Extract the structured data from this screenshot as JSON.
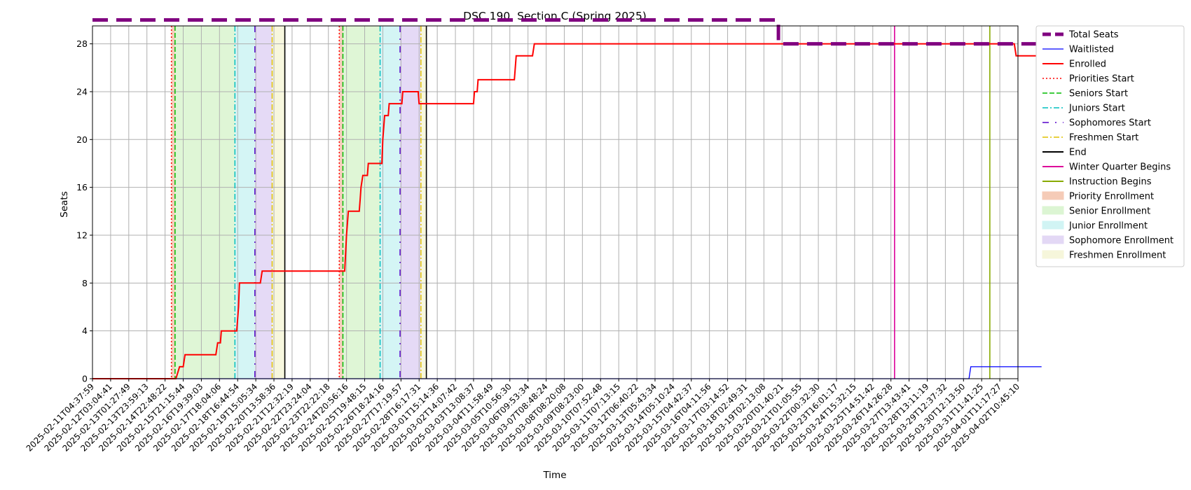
{
  "chart_data": {
    "type": "line",
    "title": "DSC 190, Section C (Spring 2025)",
    "xlabel": "Time",
    "ylabel": "Seats",
    "ylim": [
      0,
      29.5
    ],
    "yticks": [
      0,
      4,
      8,
      12,
      16,
      20,
      24,
      28
    ],
    "grid": true,
    "legend_position": "outside right",
    "x_range": [
      "2025-02-11T04:37:59",
      "2025-04-02T10:45:10"
    ],
    "xticks": [
      "2025-02-11T04:37:59",
      "2025-02-12T03:04:41",
      "2025-02-13T01:27:49",
      "2025-02-13T23:59:13",
      "2025-02-14T22:48:22",
      "2025-02-15T21:15:44",
      "2025-02-16T19:39:03",
      "2025-02-17T18:04:06",
      "2025-02-18T16:44:54",
      "2025-02-19T15:05:34",
      "2025-02-20T13:58:36",
      "2025-02-21T12:32:19",
      "2025-02-22T23:24:04",
      "2025-02-23T22:22:18",
      "2025-02-24T20:56:16",
      "2025-02-25T19:48:15",
      "2025-02-26T18:24:16",
      "2025-02-27T17:19:57",
      "2025-02-28T16:17:31",
      "2025-03-01T15:14:36",
      "2025-03-02T14:07:42",
      "2025-03-03T13:08:37",
      "2025-03-04T11:58:49",
      "2025-03-05T10:56:30",
      "2025-03-06T09:53:34",
      "2025-03-07T08:48:24",
      "2025-03-08T08:20:08",
      "2025-03-09T08:23:00",
      "2025-03-10T07:52:48",
      "2025-03-11T07:13:15",
      "2025-03-12T06:40:22",
      "2025-03-13T05:43:34",
      "2025-03-14T05:10:24",
      "2025-03-15T04:42:37",
      "2025-03-16T04:11:56",
      "2025-03-17T03:14:52",
      "2025-03-18T02:49:31",
      "2025-03-19T02:13:08",
      "2025-03-20T01:40:21",
      "2025-03-21T01:05:55",
      "2025-03-22T00:32:30",
      "2025-03-23T16:01:17",
      "2025-03-24T15:32:15",
      "2025-03-25T14:51:42",
      "2025-03-26T14:26:28",
      "2025-03-27T13:43:41",
      "2025-03-28T13:11:19",
      "2025-03-29T12:37:32",
      "2025-03-30T12:13:50",
      "2025-03-31T11:41:25",
      "2025-04-01T11:17:27",
      "2025-04-02T10:45:10"
    ],
    "series": [
      {
        "name": "Total Seats",
        "color": "#800080",
        "style": "dashed-thick",
        "points": [
          [
            0,
            30
          ],
          [
            37.8,
            30
          ],
          [
            37.8,
            28
          ],
          [
            52.3,
            28
          ]
        ]
      },
      {
        "name": "Waitlisted",
        "color": "#0000ff",
        "style": "solid-thin",
        "points": [
          [
            0,
            0
          ],
          [
            48.3,
            0
          ],
          [
            48.4,
            1
          ],
          [
            52.3,
            1
          ]
        ]
      },
      {
        "name": "Enrolled",
        "color": "#ff0000",
        "style": "solid",
        "points": [
          [
            0,
            0
          ],
          [
            4.6,
            0
          ],
          [
            4.8,
            1
          ],
          [
            5.0,
            1
          ],
          [
            5.1,
            2
          ],
          [
            6.8,
            2
          ],
          [
            6.9,
            3
          ],
          [
            7.05,
            3
          ],
          [
            7.1,
            4
          ],
          [
            7.95,
            4
          ],
          [
            8.0,
            5
          ],
          [
            8.05,
            6
          ],
          [
            8.1,
            8
          ],
          [
            9.25,
            8
          ],
          [
            9.35,
            9
          ],
          [
            13.9,
            9
          ],
          [
            14.0,
            12
          ],
          [
            14.1,
            14
          ],
          [
            14.7,
            14
          ],
          [
            14.75,
            15
          ],
          [
            14.8,
            16
          ],
          [
            14.9,
            17
          ],
          [
            15.15,
            17
          ],
          [
            15.2,
            18
          ],
          [
            15.95,
            18
          ],
          [
            16.0,
            20
          ],
          [
            16.1,
            22
          ],
          [
            16.3,
            22
          ],
          [
            16.35,
            23
          ],
          [
            17.05,
            23
          ],
          [
            17.1,
            24
          ],
          [
            17.95,
            24
          ],
          [
            18.0,
            23
          ],
          [
            21.0,
            23
          ],
          [
            21.05,
            24
          ],
          [
            21.2,
            24
          ],
          [
            21.25,
            25
          ],
          [
            23.25,
            25
          ],
          [
            23.3,
            26
          ],
          [
            23.35,
            27
          ],
          [
            24.25,
            27
          ],
          [
            24.35,
            28
          ],
          [
            50.8,
            28
          ],
          [
            50.9,
            27
          ],
          [
            52.3,
            27
          ]
        ]
      }
    ],
    "event_lines": [
      {
        "name": "Priorities Start",
        "color": "#ff0000",
        "style": "dotted",
        "x": [
          4.35,
          13.6
        ]
      },
      {
        "name": "Seniors Start",
        "color": "#00bb00",
        "style": "dashed",
        "x": [
          4.55,
          13.8
        ]
      },
      {
        "name": "Juniors Start",
        "color": "#00bfbf",
        "style": "dashdot",
        "x": [
          7.85,
          15.85
        ]
      },
      {
        "name": "Sophomores Start",
        "color": "#5500cc",
        "style": "dashdot-sparse",
        "x": [
          8.95,
          16.95
        ]
      },
      {
        "name": "Freshmen Start",
        "color": "#e0c000",
        "style": "dashdot",
        "x": [
          9.9,
          18.1
        ]
      },
      {
        "name": "End",
        "color": "#000000",
        "style": "solid",
        "x": [
          10.6,
          18.4
        ]
      },
      {
        "name": "Winter Quarter Begins",
        "color": "#dd0099",
        "style": "solid",
        "x": [
          44.2
        ]
      },
      {
        "name": "Instruction Begins",
        "color": "#88aa00",
        "style": "solid",
        "x": [
          49.45
        ]
      }
    ],
    "enrollment_periods": [
      {
        "name": "Priority Enrollment",
        "color": "#f4c6b0",
        "ranges": [
          [
            4.35,
            4.55
          ],
          [
            13.6,
            13.8
          ]
        ]
      },
      {
        "name": "Senior Enrollment",
        "color": "#d9f5cf",
        "ranges": [
          [
            4.55,
            7.85
          ],
          [
            13.8,
            15.85
          ]
        ]
      },
      {
        "name": "Junior Enrollment",
        "color": "#cdf3f3",
        "ranges": [
          [
            7.85,
            8.95
          ],
          [
            15.85,
            16.95
          ]
        ]
      },
      {
        "name": "Sophomore Enrollment",
        "color": "#e1d4f5",
        "ranges": [
          [
            8.95,
            9.9
          ],
          [
            16.95,
            18.1
          ]
        ]
      },
      {
        "name": "Freshmen Enrollment",
        "color": "#f6f6d8",
        "ranges": [
          [
            9.9,
            10.6
          ],
          [
            18.1,
            18.4
          ]
        ]
      }
    ],
    "legend": [
      {
        "label": "Total Seats",
        "kind": "line",
        "color": "#800080",
        "style": "dashed-thick"
      },
      {
        "label": "Waitlisted",
        "kind": "line",
        "color": "#0000ff",
        "style": "solid-thin"
      },
      {
        "label": "Enrolled",
        "kind": "line",
        "color": "#ff0000",
        "style": "solid"
      },
      {
        "label": "Priorities Start",
        "kind": "line",
        "color": "#ff0000",
        "style": "dotted"
      },
      {
        "label": "Seniors Start",
        "kind": "line",
        "color": "#00bb00",
        "style": "dashed"
      },
      {
        "label": "Juniors Start",
        "kind": "line",
        "color": "#00bfbf",
        "style": "dashdot"
      },
      {
        "label": "Sophomores Start",
        "kind": "line",
        "color": "#5500cc",
        "style": "dashdot-sparse"
      },
      {
        "label": "Freshmen Start",
        "kind": "line",
        "color": "#e0c000",
        "style": "dashdot"
      },
      {
        "label": "End",
        "kind": "line",
        "color": "#000000",
        "style": "solid"
      },
      {
        "label": "Winter Quarter Begins",
        "kind": "line",
        "color": "#dd0099",
        "style": "solid"
      },
      {
        "label": "Instruction Begins",
        "kind": "line",
        "color": "#88aa00",
        "style": "solid"
      },
      {
        "label": "Priority Enrollment",
        "kind": "patch",
        "color": "#f4c6b0"
      },
      {
        "label": "Senior Enrollment",
        "kind": "patch",
        "color": "#d9f5cf"
      },
      {
        "label": "Junior Enrollment",
        "kind": "patch",
        "color": "#cdf3f3"
      },
      {
        "label": "Sophomore Enrollment",
        "kind": "patch",
        "color": "#e1d4f5"
      },
      {
        "label": "Freshmen Enrollment",
        "kind": "patch",
        "color": "#f6f6d8"
      }
    ]
  }
}
